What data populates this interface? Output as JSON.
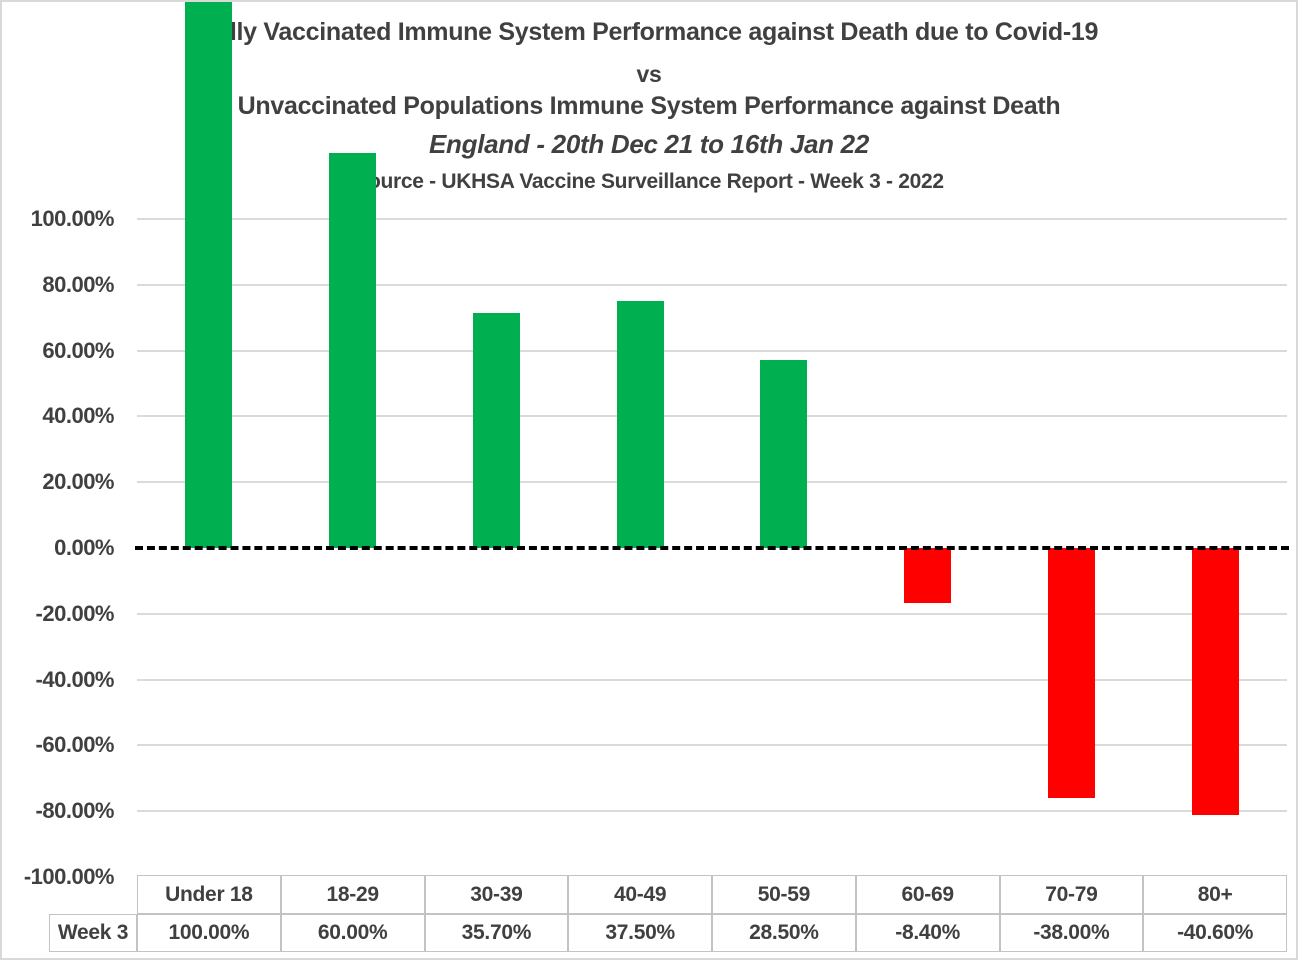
{
  "titles": {
    "line1": "Fully Vaccinated Immune System Performance against Death due to Covid-19",
    "line2": "vs",
    "line3": "Unvaccinated Populations Immune System Performance against Death",
    "line4": "England - 20th Dec 21 to 16th Jan 22",
    "line5": "Source - UKHSA Vaccine Surveillance Report - Week 3 - 2022"
  },
  "chart_data": {
    "type": "bar",
    "title": "Fully Vaccinated Immune System Performance against Death due to Covid-19 vs Unvaccinated Populations Immune System Performance against Death",
    "subtitle": "England - 20th Dec 21 to 16th Jan 22",
    "source": "Source - UKHSA Vaccine Surveillance Report - Week 3 - 2022",
    "categories": [
      "Under 18",
      "18-29",
      "30-39",
      "40-49",
      "50-59",
      "60-69",
      "70-79",
      "80+"
    ],
    "series": [
      {
        "name": "Week 3",
        "values": [
          100.0,
          60.0,
          35.7,
          37.5,
          28.5,
          -8.4,
          -38.0,
          -40.6
        ],
        "value_labels": [
          "100.00%",
          "60.00%",
          "35.70%",
          "37.50%",
          "28.50%",
          "-8.40%",
          "-38.00%",
          "-40.60%"
        ]
      }
    ],
    "xlabel": "",
    "ylabel": "",
    "ylim": [
      -100,
      100
    ],
    "ytick_step": 20,
    "yticks": [
      {
        "value": 100,
        "label": "100.00%"
      },
      {
        "value": 80,
        "label": "80.00%"
      },
      {
        "value": 60,
        "label": "60.00%"
      },
      {
        "value": 40,
        "label": "40.00%"
      },
      {
        "value": 20,
        "label": "20.00%"
      },
      {
        "value": 0,
        "label": "0.00%"
      },
      {
        "value": -20,
        "label": "-20.00%"
      },
      {
        "value": -40,
        "label": "-40.00%"
      },
      {
        "value": -60,
        "label": "-60.00%"
      },
      {
        "value": -80,
        "label": "-80.00%"
      },
      {
        "value": -100,
        "label": "-100.00%"
      }
    ],
    "grid": true,
    "zero_line_style": "dashed-black",
    "legend_position": "none",
    "data_table_shown": true,
    "colors": {
      "positive_bar": "#00B050",
      "negative_bar": "#FF0000",
      "text": "#404040",
      "gridline": "#DADADA",
      "table_border": "#C3C3C3",
      "zero_line": "#000000",
      "background": "#FFFFFF"
    }
  }
}
